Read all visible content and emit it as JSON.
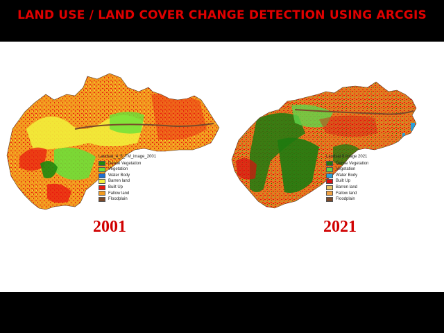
{
  "title": "LAND USE / LAND COVER CHANGE DETECTION USING ARCGIS",
  "maps": [
    {
      "year": "2001",
      "legend_title": "Landsat_4_5_TM_image_2001",
      "base_color": "#f29a1f",
      "classes": [
        {
          "label": "Dense Vegetation",
          "color": "#1e8a10"
        },
        {
          "label": "Vegetation",
          "color": "#66e23a"
        },
        {
          "label": "Water Body",
          "color": "#1f6fd0"
        },
        {
          "label": "Barren land",
          "color": "#f2ee3a"
        },
        {
          "label": "Built Up",
          "color": "#e81c10"
        },
        {
          "label": "Fallow land",
          "color": "#f29a1f"
        },
        {
          "label": "Floodplain",
          "color": "#7a4a2a"
        }
      ]
    },
    {
      "year": "2021",
      "legend_title": "Landsat 8 image 2021",
      "base_color": "#e8771e",
      "classes": [
        {
          "label": "Dense Vegetation",
          "color": "#1e7a10"
        },
        {
          "label": "Vegetation",
          "color": "#5fd64a"
        },
        {
          "label": "Water Body",
          "color": "#2aa0d8"
        },
        {
          "label": "Built Up",
          "color": "#d81010"
        },
        {
          "label": "Barren land",
          "color": "#e8c060"
        },
        {
          "label": "Fallow land",
          "color": "#f0a040"
        },
        {
          "label": "Floodplain",
          "color": "#7a4a2a"
        }
      ]
    }
  ]
}
